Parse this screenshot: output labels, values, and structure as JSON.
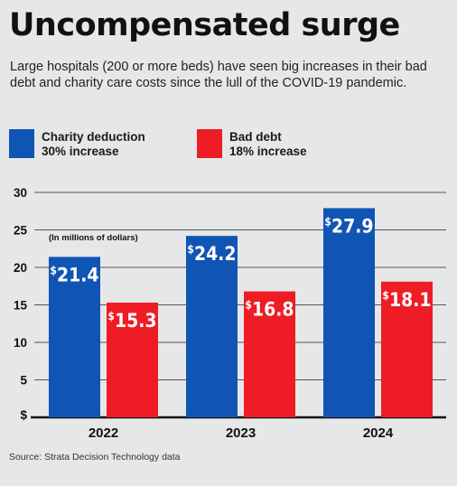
{
  "title": "Uncompensated surge",
  "subtitle": "Large hospitals (200 or more beds) have seen big increases in their bad debt and charity care costs since the lull of the COVID-19 pandemic.",
  "source": "Source: Strata Decision Technology data",
  "legend": [
    {
      "label": "Charity deduction",
      "note": "30% increase",
      "color": "#1155b4"
    },
    {
      "label": "Bad debt",
      "note": "18% increase",
      "color": "#ee1c25"
    }
  ],
  "chart_data": {
    "type": "bar",
    "categories": [
      "2022",
      "2023",
      "2024"
    ],
    "series": [
      {
        "name": "Charity deduction",
        "values": [
          21.4,
          24.2,
          27.9
        ],
        "color": "#1155b4"
      },
      {
        "name": "Bad debt",
        "values": [
          15.3,
          16.8,
          18.1
        ],
        "color": "#ee1c25"
      }
    ],
    "value_prefix": "$",
    "unit_note": "(In millions of dollars)",
    "ylim": [
      0,
      30
    ],
    "yticks": [
      0,
      5,
      10,
      15,
      20,
      25,
      30
    ],
    "ytick_labels": [
      "$",
      "5",
      "10",
      "15",
      "20",
      "25",
      "30"
    ],
    "grid": true
  }
}
